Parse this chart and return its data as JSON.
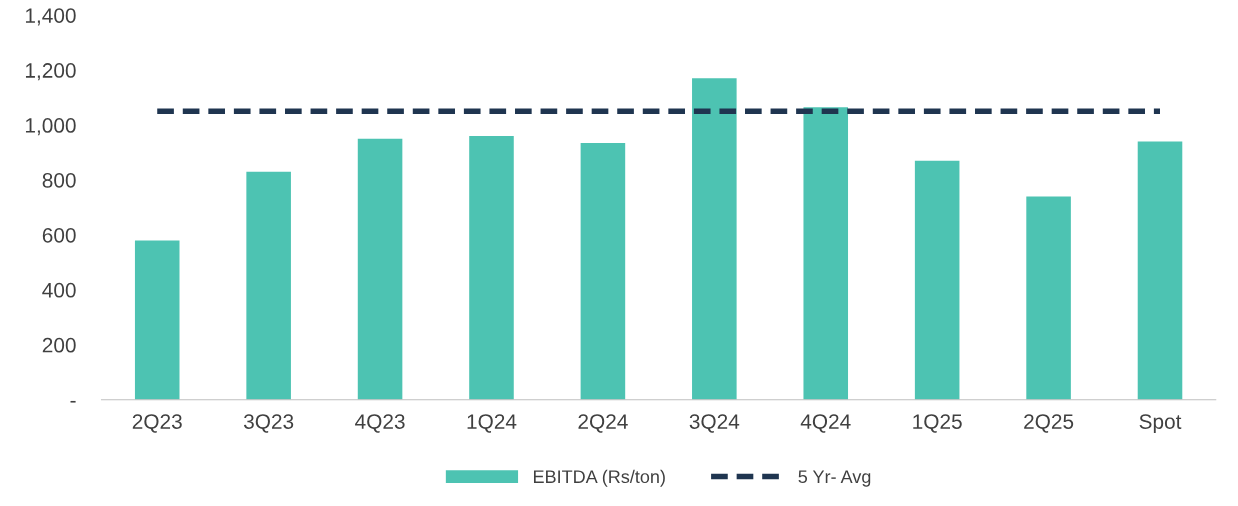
{
  "chart_data": {
    "type": "bar",
    "categories": [
      "2Q23",
      "3Q23",
      "4Q23",
      "1Q24",
      "2Q24",
      "3Q24",
      "4Q24",
      "1Q25",
      "2Q25",
      "Spot"
    ],
    "series": [
      {
        "name": "EBITDA (Rs/ton)",
        "color": "#4dc3b2",
        "values": [
          580,
          830,
          950,
          960,
          935,
          1170,
          1065,
          870,
          740,
          940
        ]
      },
      {
        "name": "5 Yr- Avg",
        "type": "line",
        "color": "#1f3550",
        "line_style": "dashed",
        "values": [
          1050,
          1050,
          1050,
          1050,
          1050,
          1050,
          1050,
          1050,
          1050,
          1050
        ]
      }
    ],
    "ylim": [
      0,
      1400
    ],
    "yticks": [
      {
        "value": 0,
        "label": "-"
      },
      200,
      400,
      600,
      800,
      {
        "value": 1000,
        "label": "1,000"
      },
      {
        "value": 1200,
        "label": "1,200"
      },
      {
        "value": 1400,
        "label": "1,400"
      }
    ],
    "grid": false,
    "legend": "bottom"
  }
}
